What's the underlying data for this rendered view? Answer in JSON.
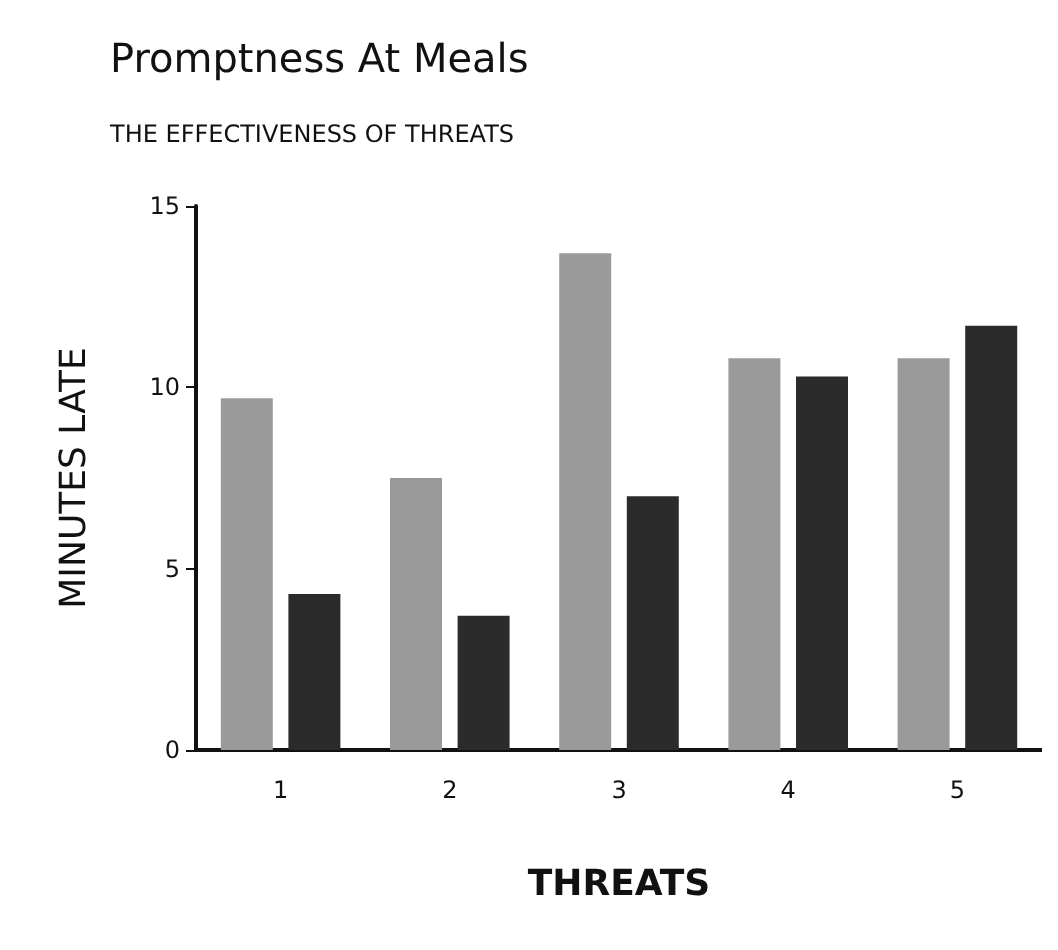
{
  "chart_data": {
    "type": "bar",
    "title": "Promptness At Meals",
    "subtitle": "THE EFFECTIVENESS OF THREATS",
    "xlabel": "THREATS",
    "ylabel": "MINUTES LATE",
    "categories": [
      "1",
      "2",
      "3",
      "4",
      "5"
    ],
    "series": [
      {
        "color": "#9a9a9a",
        "values": [
          9.7,
          7.5,
          13.7,
          10.8,
          10.8
        ]
      },
      {
        "color": "#2b2b2b",
        "values": [
          4.3,
          3.7,
          7.0,
          10.3,
          11.7
        ]
      }
    ],
    "ylim": [
      0,
      15
    ],
    "yticks": [
      0,
      5,
      10,
      15
    ],
    "grid": false
  }
}
